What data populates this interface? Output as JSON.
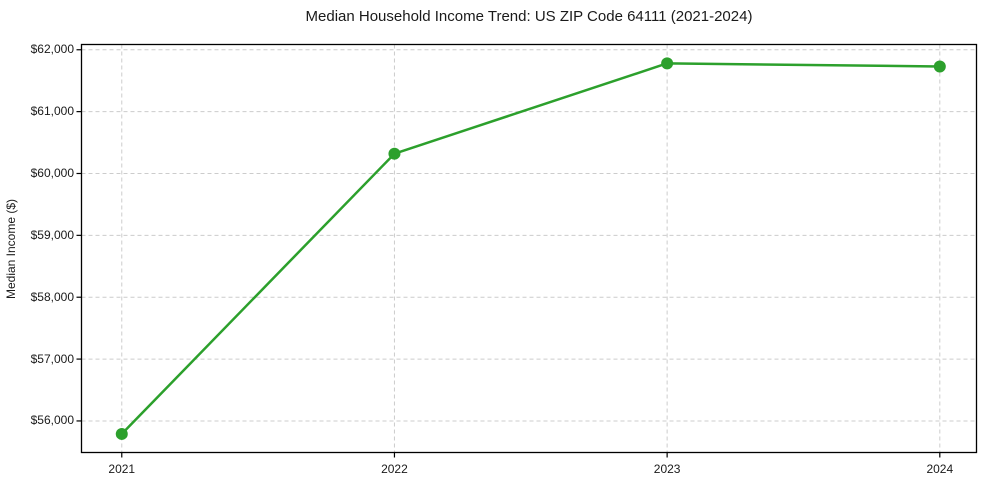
{
  "chart_data": {
    "type": "line",
    "title": "Median Household Income Trend: US ZIP Code 64111 (2021-2024)",
    "xlabel": "",
    "ylabel": "Median Income ($)",
    "categories": [
      "2021",
      "2022",
      "2023",
      "2024"
    ],
    "series": [
      {
        "name": "Median Household Income",
        "values": [
          55790,
          60320,
          61780,
          61730
        ]
      }
    ],
    "yticks": {
      "values": [
        56000,
        57000,
        58000,
        59000,
        60000,
        61000,
        62000
      ],
      "labels": [
        "$56,000",
        "$57,000",
        "$58,000",
        "$59,000",
        "$60,000",
        "$61,000",
        "$62,000"
      ]
    },
    "ylim": [
      55490,
      62085
    ],
    "grid": true,
    "grid_style": "dashed",
    "legend": "none",
    "colors": {
      "line": "#2ca02c",
      "marker": "#2ca02c",
      "grid": "#cccccc",
      "spine": "#000000",
      "text": "#1a1a1a",
      "background": "#ffffff"
    }
  }
}
